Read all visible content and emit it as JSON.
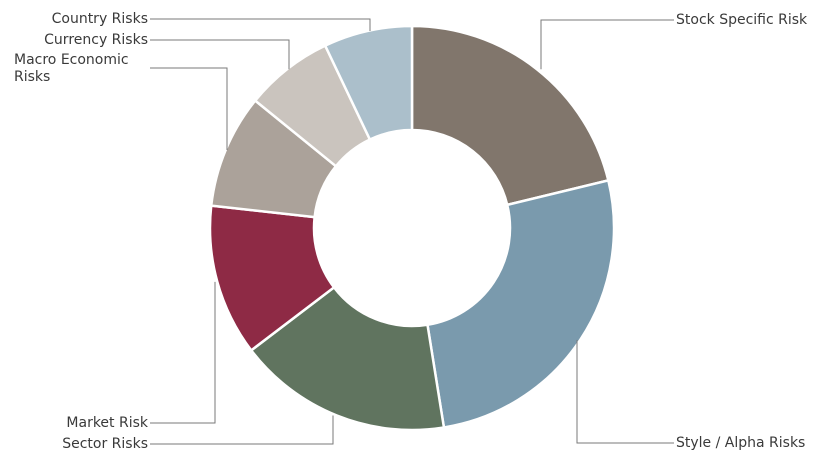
{
  "chart_data": {
    "type": "pie",
    "donut": true,
    "title": "",
    "categories": [
      "Stock Specific Risk",
      "Style / Alpha Risks",
      "Sector Risks",
      "Market Risk",
      "Macro Economic Risks",
      "Currency Risks",
      "Country Risks"
    ],
    "values": [
      21,
      26,
      17,
      12,
      9,
      7,
      7
    ],
    "colors": [
      "#81766c",
      "#7a9aad",
      "#60745f",
      "#8e2a45",
      "#aba29a",
      "#cac4be",
      "#abbfcb"
    ],
    "legend": "none",
    "labels": [
      {
        "text": "Stock Specific Risk"
      },
      {
        "text": "Style / Alpha Risks"
      },
      {
        "text": "Sector Risks"
      },
      {
        "text": "Market Risk"
      },
      {
        "text": "Macro Economic Risks",
        "lines": [
          "Macro Economic",
          "Risks"
        ]
      },
      {
        "text": "Currency Risks"
      },
      {
        "text": "Country Risks"
      }
    ]
  }
}
